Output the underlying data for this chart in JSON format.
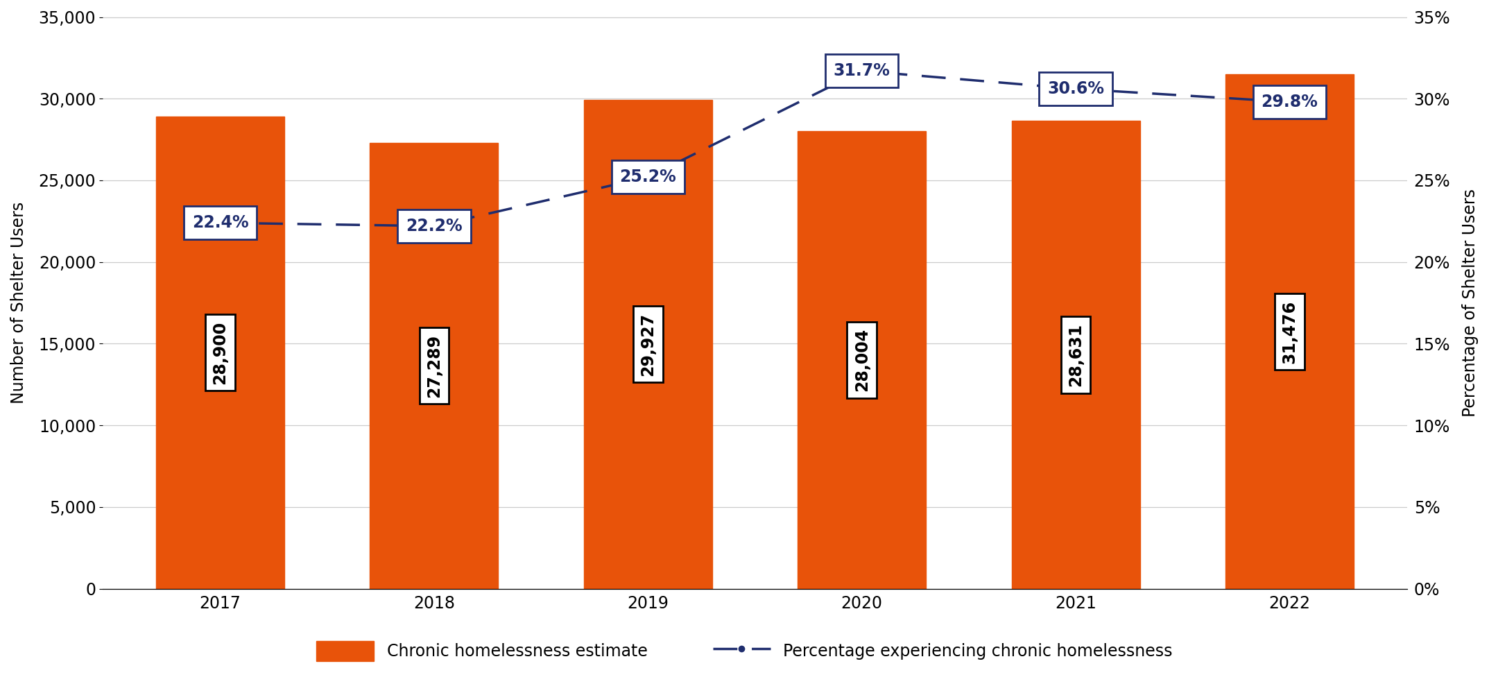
{
  "years": [
    "2017",
    "2018",
    "2019",
    "2020",
    "2021",
    "2022"
  ],
  "bar_values": [
    28900,
    27289,
    29927,
    28004,
    28631,
    31476
  ],
  "pct_values": [
    22.4,
    22.2,
    25.2,
    31.7,
    30.6,
    29.8
  ],
  "bar_color": "#E8530A",
  "line_color": "#1F2D6E",
  "bar_labels": [
    "28,900",
    "27,289",
    "29,927",
    "28,004",
    "28,631",
    "31,476"
  ],
  "pct_labels": [
    "22.4%",
    "22.2%",
    "25.2%",
    "31.7%",
    "30.6%",
    "29.8%"
  ],
  "ylabel_left": "Number of Shelter Users",
  "ylabel_right": "Percentage of Shelter Users",
  "ylim_left": [
    0,
    35000
  ],
  "ylim_right": [
    0,
    35
  ],
  "yticks_left": [
    0,
    5000,
    10000,
    15000,
    20000,
    25000,
    30000,
    35000
  ],
  "yticks_right": [
    0,
    5,
    10,
    15,
    20,
    25,
    30,
    35
  ],
  "ytick_labels_left": [
    "0",
    "5,000",
    "10,000",
    "15,000",
    "20,000",
    "25,000",
    "30,000",
    "35,000"
  ],
  "ytick_labels_right": [
    "0%",
    "5%",
    "10%",
    "15%",
    "20%",
    "25%",
    "30%",
    "35%"
  ],
  "legend_bar_label": "Chronic homelessness estimate",
  "legend_line_label": "Percentage experiencing chronic homelessness",
  "background_color": "#FFFFFF",
  "grid_color": "#CCCCCC",
  "bar_label_fontsize": 17,
  "pct_label_fontsize": 17,
  "axis_label_fontsize": 17,
  "tick_fontsize": 17,
  "legend_fontsize": 17
}
